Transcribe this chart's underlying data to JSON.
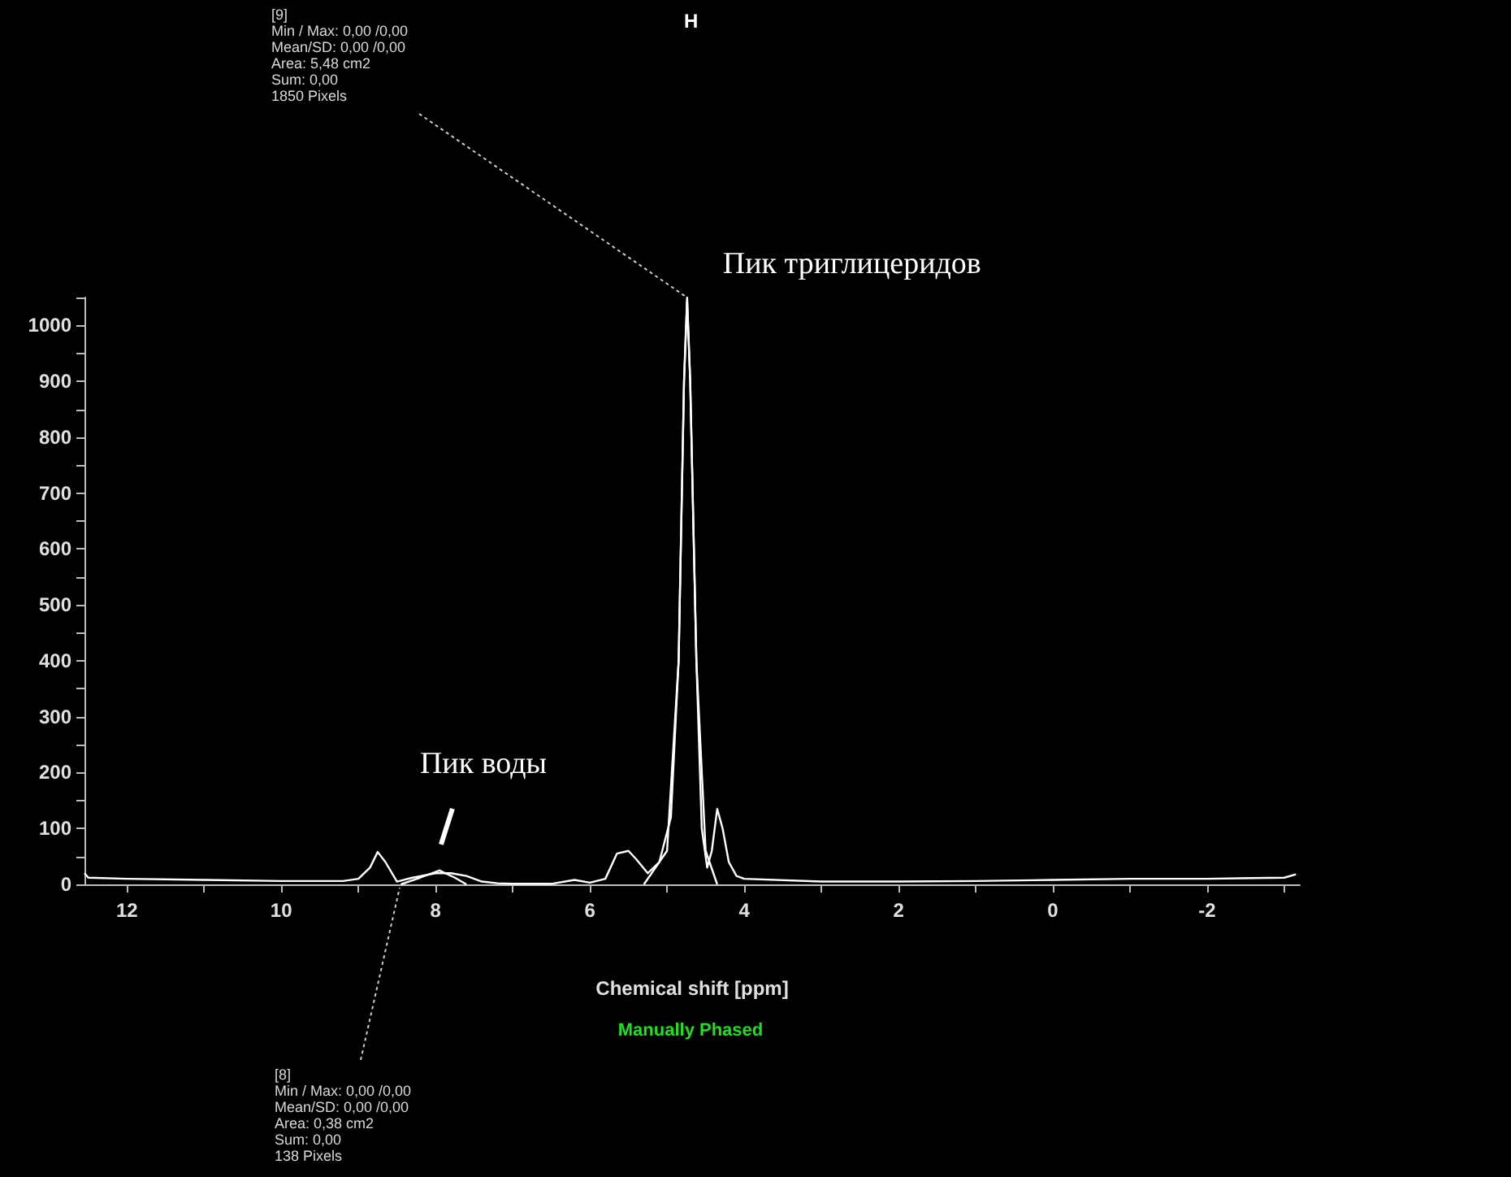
{
  "chart_data": {
    "type": "line",
    "title": "H",
    "xlabel": "Chemical shift [ppm]",
    "xlim": [
      12.55,
      -3.2
    ],
    "ylim": [
      0,
      1050
    ],
    "xticks": [
      12,
      {
        "value": 11,
        "label": null
      },
      10,
      {
        "value": 9,
        "label": null
      },
      8,
      {
        "value": 7,
        "label": null
      },
      6,
      {
        "value": 5,
        "label": null
      },
      4,
      {
        "value": 3,
        "label": null
      },
      2,
      {
        "value": 1,
        "label": null
      },
      0,
      {
        "value": -1,
        "label": null
      },
      -2,
      {
        "value": -3,
        "label": null
      }
    ],
    "yticks": [
      0,
      {
        "value": 50,
        "label": null
      },
      100,
      {
        "value": 150,
        "label": null
      },
      200,
      {
        "value": 250,
        "label": null
      },
      300,
      {
        "value": 350,
        "label": null
      },
      400,
      {
        "value": 450,
        "label": null
      },
      500,
      {
        "value": 550,
        "label": null
      },
      600,
      {
        "value": 650,
        "label": null
      },
      700,
      {
        "value": 750,
        "label": null
      },
      800,
      {
        "value": 850,
        "label": null
      },
      900,
      {
        "value": 950,
        "label": null
      },
      1000,
      {
        "value": 1050,
        "label": null
      }
    ],
    "grid": false,
    "marker": "none",
    "line_style": "solid",
    "series": [
      {
        "color": "#ffffff",
        "x": [
          12.55,
          12.5,
          12,
          11,
          10,
          9.2,
          9,
          8.85,
          8.75,
          8.65,
          8.5,
          8.3,
          8,
          7.8,
          7.6,
          7.4,
          7.2,
          7,
          6.5,
          6.2,
          6,
          5.8,
          5.65,
          5.5,
          5.4,
          5.25,
          5.1,
          4.95,
          4.85,
          4.78,
          4.74,
          4.7,
          4.62,
          4.55,
          4.48,
          4.42,
          4.35,
          4.28,
          4.2,
          4.1,
          4,
          3,
          2,
          1,
          0,
          -1,
          -2,
          -3,
          -3.15
        ],
        "values": [
          20,
          12,
          10,
          8,
          6,
          6,
          10,
          30,
          58,
          40,
          5,
          12,
          20,
          20,
          15,
          5,
          2,
          1,
          1,
          8,
          3,
          10,
          55,
          60,
          45,
          20,
          40,
          120,
          400,
          900,
          1045,
          900,
          400,
          100,
          30,
          60,
          135,
          100,
          40,
          15,
          10,
          5,
          5,
          6,
          8,
          10,
          10,
          12,
          18
        ]
      },
      {
        "color": "#ffffff",
        "x": [
          8.45,
          8.2,
          7.95,
          7.75,
          7.6
        ],
        "values": [
          0,
          12,
          25,
          12,
          0
        ]
      },
      {
        "color": "#ffffff",
        "x": [
          5.3,
          5.0,
          4.85,
          4.78,
          4.74,
          4.7,
          4.62,
          4.5,
          4.35
        ],
        "values": [
          0,
          60,
          400,
          900,
          1050,
          900,
          400,
          60,
          0
        ]
      }
    ],
    "annotations": [
      {
        "text": "Пик триглицеридов",
        "x": 4.74,
        "y": 1050
      },
      {
        "text": "Пик воды",
        "x": 7.95,
        "y": 25
      },
      "[9]\nMin / Max: 0,00 /0,00\nMean/SD: 0,00 /0,00\nArea: 5,48 cm2\nSum: 0,00\n1850 Pixels",
      "[8]\nMin / Max: 0,00 /0,00\nMean/SD: 0,00 /0,00\nArea: 0,38 cm2\nSum: 0,00\n138 Pixels",
      "Manually Phased"
    ]
  }
}
